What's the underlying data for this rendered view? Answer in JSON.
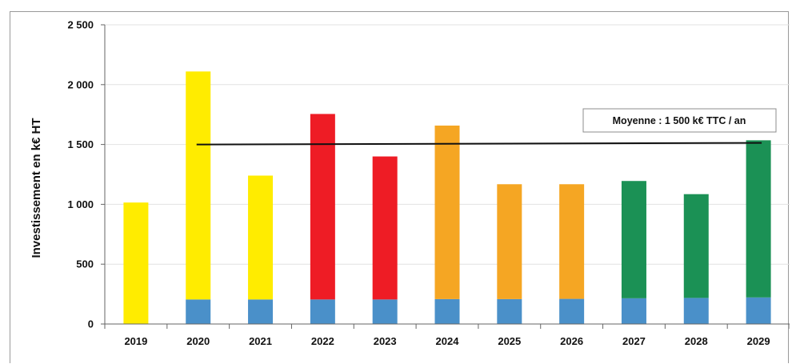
{
  "chart_data": {
    "type": "bar",
    "stacked": true,
    "categories": [
      "2019",
      "2020",
      "2021",
      "2022",
      "2023",
      "2024",
      "2025",
      "2026",
      "2027",
      "2028",
      "2029"
    ],
    "series": [
      {
        "values": [
          0,
          205,
          205,
          205,
          205,
          208,
          208,
          210,
          215,
          218,
          222
        ],
        "color": "#4a90c9"
      },
      {
        "values": [
          1015,
          1905,
          1035,
          1550,
          1195,
          1450,
          960,
          958,
          980,
          867,
          1313
        ],
        "colors": [
          "#ffec00",
          "#ffec00",
          "#ffec00",
          "#ee1c25",
          "#ee1c25",
          "#f5a623",
          "#f5a623",
          "#f5a623",
          "#1b9155",
          "#1b9155",
          "#1b9155"
        ]
      }
    ],
    "ylabel": "Investissement en k€ HT",
    "ylim": [
      0,
      2500
    ],
    "yticks": [
      0,
      500,
      1000,
      1500,
      2000,
      2500
    ],
    "ytick_labels": [
      "0",
      "500",
      "1 000",
      "1 500",
      "2 000",
      "2 500"
    ],
    "grid": true,
    "reference_line": {
      "value": 1500,
      "from": "2020",
      "to": "2029"
    },
    "annotation": "Moyenne : 1 500 k€ TTC / an"
  }
}
